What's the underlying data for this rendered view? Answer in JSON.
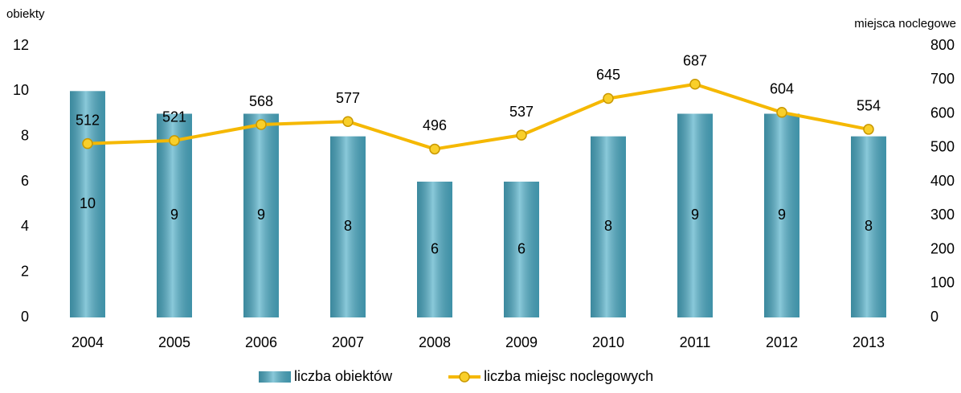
{
  "chart_data": {
    "type": "bar",
    "ylabel": "obiekty",
    "y2label": "miejsca noclegowe",
    "categories": [
      "2004",
      "2005",
      "2006",
      "2007",
      "2008",
      "2009",
      "2010",
      "2011",
      "2012",
      "2013"
    ],
    "series": [
      {
        "name": "liczba obiektów",
        "type": "bar",
        "color": "#4bacc6",
        "values": [
          10,
          9,
          9,
          8,
          6,
          6,
          8,
          9,
          9,
          8
        ]
      },
      {
        "name": "liczba miejsc noclegowych",
        "type": "line",
        "axis": "y2",
        "color": "#f5b800",
        "values": [
          512,
          521,
          568,
          577,
          496,
          537,
          645,
          687,
          604,
          554
        ]
      }
    ],
    "ylim": [
      0,
      12
    ],
    "yticks": [
      0,
      2,
      4,
      6,
      8,
      10,
      12
    ],
    "y2lim": [
      0,
      800
    ],
    "y2ticks": [
      0,
      100,
      200,
      300,
      400,
      500,
      600,
      700,
      800
    ],
    "legend": "bottom"
  }
}
